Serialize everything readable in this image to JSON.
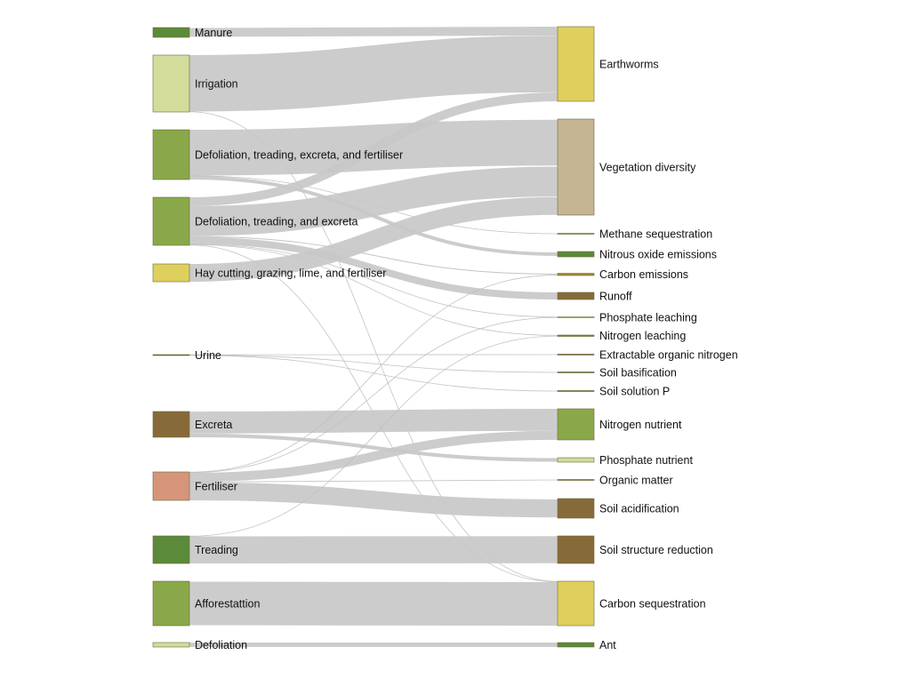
{
  "diagram": {
    "type": "sankey",
    "sources": [
      {
        "id": "manure",
        "label": "Manure",
        "color": "#5a8a3a"
      },
      {
        "id": "irrigation",
        "label": "Irrigation",
        "color": "#d4dc9c"
      },
      {
        "id": "dtef",
        "label": "Defoliation, treading, excreta, and fertiliser",
        "color": "#89a84a"
      },
      {
        "id": "dte",
        "label": "Defoliation, treading, and excreta",
        "color": "#89a84a"
      },
      {
        "id": "hay",
        "label": "Hay cutting, grazing, lime, and fertiliser",
        "color": "#dfd05e"
      },
      {
        "id": "urine",
        "label": "Urine",
        "color": "#5a5a2a"
      },
      {
        "id": "excreta",
        "label": "Excreta",
        "color": "#876a3a"
      },
      {
        "id": "fertiliser",
        "label": "Fertiliser",
        "color": "#d6957a"
      },
      {
        "id": "treading",
        "label": "Treading",
        "color": "#5a8a3a"
      },
      {
        "id": "afforestation",
        "label": "Afforestattion",
        "color": "#89a84a"
      },
      {
        "id": "defoliation",
        "label": "Defoliation",
        "color": "#d4dc9c"
      }
    ],
    "targets": [
      {
        "id": "earthworms",
        "label": "Earthworms",
        "color": "#dfd05e"
      },
      {
        "id": "vegdiv",
        "label": "Vegetation diversity",
        "color": "#c5b593"
      },
      {
        "id": "methane",
        "label": "Methane sequestration",
        "color": "#89a84a"
      },
      {
        "id": "n2o",
        "label": "Nitrous oxide emissions",
        "color": "#5a8a3a"
      },
      {
        "id": "carbonem",
        "label": "Carbon emissions",
        "color": "#a09030"
      },
      {
        "id": "runoff",
        "label": "Runoff",
        "color": "#876a3a"
      },
      {
        "id": "phosleach",
        "label": "Phosphate leaching",
        "color": "#d4dc9c"
      },
      {
        "id": "nleach",
        "label": "Nitrogen leaching",
        "color": "#5a8a3a"
      },
      {
        "id": "eon",
        "label": "Extractable organic nitrogen",
        "color": "#8a3a2a"
      },
      {
        "id": "soilbas",
        "label": "Soil basification",
        "color": "#5a5a2a"
      },
      {
        "id": "soilsol",
        "label": "Soil solution P",
        "color": "#5a5a2a"
      },
      {
        "id": "nnut",
        "label": "Nitrogen nutrient",
        "color": "#89a84a"
      },
      {
        "id": "pnut",
        "label": "Phosphate nutrient",
        "color": "#d4dc9c"
      },
      {
        "id": "orgmat",
        "label": "Organic matter",
        "color": "#876a3a"
      },
      {
        "id": "soilacid",
        "label": "Soil acidification",
        "color": "#876a3a"
      },
      {
        "id": "soilstruct",
        "label": "Soil structure reduction",
        "color": "#876a3a"
      },
      {
        "id": "carbonseq",
        "label": "Carbon sequestration",
        "color": "#dfd05e"
      },
      {
        "id": "ant",
        "label": "Ant",
        "color": "#5a8a3a"
      }
    ],
    "flows": [
      {
        "source": "manure",
        "target": "earthworms",
        "value": 10
      },
      {
        "source": "irrigation",
        "target": "earthworms",
        "value": 64
      },
      {
        "source": "irrigation",
        "target": "carbonseq",
        "value": 0.5
      },
      {
        "source": "dtef",
        "target": "vegdiv",
        "value": 52
      },
      {
        "source": "dtef",
        "target": "n2o",
        "value": 4
      },
      {
        "source": "dtef",
        "target": "methane",
        "value": 0.5
      },
      {
        "source": "dte",
        "target": "earthworms",
        "value": 10
      },
      {
        "source": "dte",
        "target": "vegdiv",
        "value": 34
      },
      {
        "source": "dte",
        "target": "runoff",
        "value": 8
      },
      {
        "source": "dte",
        "target": "carbonem",
        "value": 1
      },
      {
        "source": "dte",
        "target": "phosleach",
        "value": 0.5
      },
      {
        "source": "dte",
        "target": "nleach",
        "value": 0.5
      },
      {
        "source": "dte",
        "target": "carbonseq",
        "value": 0.5
      },
      {
        "source": "hay",
        "target": "vegdiv",
        "value": 20
      },
      {
        "source": "urine",
        "target": "eon",
        "value": 0.5
      },
      {
        "source": "urine",
        "target": "soilbas",
        "value": 0.5
      },
      {
        "source": "urine",
        "target": "soilsol",
        "value": 0.5
      },
      {
        "source": "excreta",
        "target": "nnut",
        "value": 24
      },
      {
        "source": "excreta",
        "target": "pnut",
        "value": 4
      },
      {
        "source": "fertiliser",
        "target": "nnut",
        "value": 10
      },
      {
        "source": "fertiliser",
        "target": "orgmat",
        "value": 0.5
      },
      {
        "source": "fertiliser",
        "target": "soilacid",
        "value": 20
      },
      {
        "source": "fertiliser",
        "target": "carbonem",
        "value": 0.5
      },
      {
        "source": "fertiliser",
        "target": "phosleach",
        "value": 0.5
      },
      {
        "source": "treading",
        "target": "soilstruct",
        "value": 30
      },
      {
        "source": "treading",
        "target": "nleach",
        "value": 0.5
      },
      {
        "source": "afforestation",
        "target": "carbonseq",
        "value": 50
      },
      {
        "source": "defoliation",
        "target": "ant",
        "value": 4
      }
    ]
  }
}
